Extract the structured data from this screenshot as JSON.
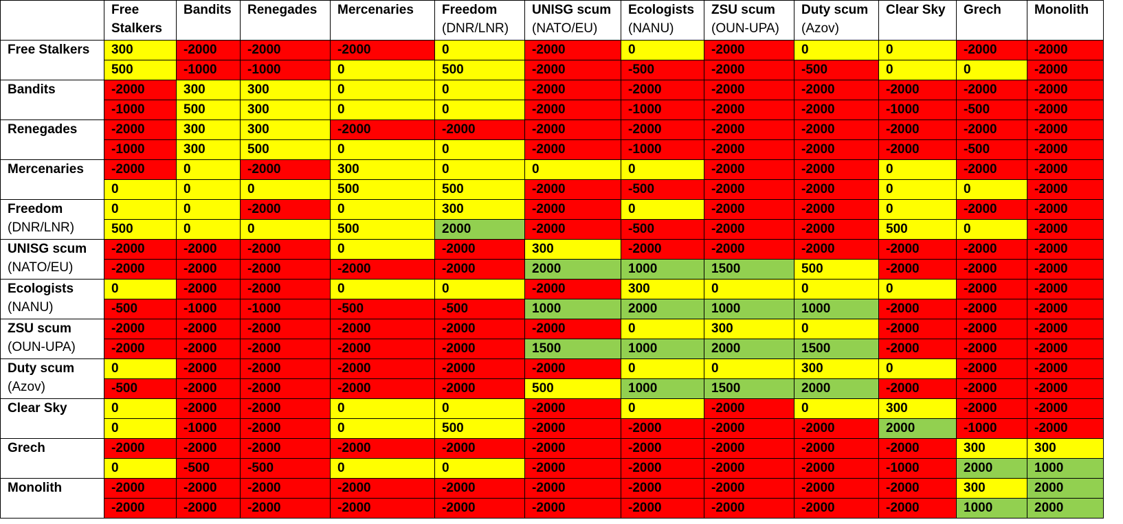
{
  "colors": {
    "hostile": "#ff0000",
    "neutral": "#ffff00",
    "friendly": "#92d050"
  },
  "factions": [
    {
      "name": "Free Stalkers",
      "head": [
        "Free",
        "Stalkers"
      ],
      "row_head": [
        "Free Stalkers",
        ""
      ]
    },
    {
      "name": "Bandits",
      "head": [
        "Bandits",
        ""
      ],
      "row_head": [
        "Bandits",
        ""
      ]
    },
    {
      "name": "Renegades",
      "head": [
        "Renegades",
        ""
      ],
      "row_head": [
        "Renegades",
        ""
      ]
    },
    {
      "name": "Mercenaries",
      "head": [
        "Mercenaries",
        ""
      ],
      "row_head": [
        "Mercenaries",
        ""
      ]
    },
    {
      "name": "Freedom (DNR/LNR)",
      "head": [
        "Freedom",
        "(DNR/LNR)"
      ],
      "row_head": [
        "Freedom",
        "(DNR/LNR)"
      ]
    },
    {
      "name": "UNISG scum (NATO/EU)",
      "head": [
        "UNISG scum",
        "(NATO/EU)"
      ],
      "row_head": [
        "UNISG scum",
        "(NATO/EU)"
      ]
    },
    {
      "name": "Ecologists (NANU)",
      "head": [
        "Ecologists",
        "(NANU)"
      ],
      "row_head": [
        "Ecologists",
        "(NANU)"
      ]
    },
    {
      "name": "ZSU scum (OUN-UPA)",
      "head": [
        "ZSU scum",
        "(OUN-UPA)"
      ],
      "row_head": [
        "ZSU scum",
        "(OUN-UPA)"
      ]
    },
    {
      "name": "Duty scum (Azov)",
      "head": [
        "Duty scum",
        "(Azov)"
      ],
      "row_head": [
        "Duty scum",
        "(Azov)"
      ]
    },
    {
      "name": "Clear Sky",
      "head": [
        "Clear Sky",
        ""
      ],
      "row_head": [
        "Clear Sky",
        ""
      ]
    },
    {
      "name": "Grech",
      "head": [
        "Grech",
        ""
      ],
      "row_head": [
        "Grech",
        ""
      ]
    },
    {
      "name": "Monolith",
      "head": [
        "Monolith",
        ""
      ],
      "row_head": [
        "Monolith",
        ""
      ]
    }
  ],
  "rows": [
    [
      [
        300,
        -2000,
        -2000,
        -2000,
        0,
        -2000,
        0,
        -2000,
        0,
        0,
        -2000,
        -2000
      ],
      [
        500,
        -1000,
        -1000,
        0,
        500,
        -2000,
        -500,
        -2000,
        -500,
        0,
        0,
        -2000
      ]
    ],
    [
      [
        -2000,
        300,
        300,
        0,
        0,
        -2000,
        -2000,
        -2000,
        -2000,
        -2000,
        -2000,
        -2000
      ],
      [
        -1000,
        500,
        300,
        0,
        0,
        -2000,
        -1000,
        -2000,
        -2000,
        -1000,
        -500,
        -2000
      ]
    ],
    [
      [
        -2000,
        300,
        300,
        -2000,
        -2000,
        -2000,
        -2000,
        -2000,
        -2000,
        -2000,
        -2000,
        -2000
      ],
      [
        -1000,
        300,
        500,
        0,
        0,
        -2000,
        -1000,
        -2000,
        -2000,
        -2000,
        -500,
        -2000
      ]
    ],
    [
      [
        -2000,
        0,
        -2000,
        300,
        0,
        0,
        0,
        -2000,
        -2000,
        0,
        -2000,
        -2000
      ],
      [
        0,
        0,
        0,
        500,
        500,
        -2000,
        -500,
        -2000,
        -2000,
        0,
        0,
        -2000
      ]
    ],
    [
      [
        0,
        0,
        -2000,
        0,
        300,
        -2000,
        0,
        -2000,
        -2000,
        0,
        -2000,
        -2000
      ],
      [
        500,
        0,
        0,
        500,
        2000,
        -2000,
        -500,
        -2000,
        -2000,
        500,
        0,
        -2000
      ]
    ],
    [
      [
        -2000,
        -2000,
        -2000,
        0,
        -2000,
        300,
        -2000,
        -2000,
        -2000,
        -2000,
        -2000,
        -2000
      ],
      [
        -2000,
        -2000,
        -2000,
        -2000,
        -2000,
        2000,
        1000,
        1500,
        500,
        -2000,
        -2000,
        -2000
      ]
    ],
    [
      [
        0,
        -2000,
        -2000,
        0,
        0,
        -2000,
        300,
        0,
        0,
        0,
        -2000,
        -2000
      ],
      [
        -500,
        -1000,
        -1000,
        -500,
        -500,
        1000,
        2000,
        1000,
        1000,
        -2000,
        -2000,
        -2000
      ]
    ],
    [
      [
        -2000,
        -2000,
        -2000,
        -2000,
        -2000,
        -2000,
        0,
        300,
        0,
        -2000,
        -2000,
        -2000
      ],
      [
        -2000,
        -2000,
        -2000,
        -2000,
        -2000,
        1500,
        1000,
        2000,
        1500,
        -2000,
        -2000,
        -2000
      ]
    ],
    [
      [
        0,
        -2000,
        -2000,
        -2000,
        -2000,
        -2000,
        0,
        0,
        300,
        0,
        -2000,
        -2000
      ],
      [
        -500,
        -2000,
        -2000,
        -2000,
        -2000,
        500,
        1000,
        1500,
        2000,
        -2000,
        -2000,
        -2000
      ]
    ],
    [
      [
        0,
        -2000,
        -2000,
        0,
        0,
        -2000,
        0,
        -2000,
        0,
        300,
        -2000,
        -2000
      ],
      [
        0,
        -1000,
        -2000,
        0,
        500,
        -2000,
        -2000,
        -2000,
        -2000,
        2000,
        -1000,
        -2000
      ]
    ],
    [
      [
        -2000,
        -2000,
        -2000,
        -2000,
        -2000,
        -2000,
        -2000,
        -2000,
        -2000,
        -2000,
        300,
        300
      ],
      [
        0,
        -500,
        -500,
        0,
        0,
        -2000,
        -2000,
        -2000,
        -2000,
        -1000,
        2000,
        1000
      ]
    ],
    [
      [
        -2000,
        -2000,
        -2000,
        -2000,
        -2000,
        -2000,
        -2000,
        -2000,
        -2000,
        -2000,
        300,
        2000
      ],
      [
        -2000,
        -2000,
        -2000,
        -2000,
        -2000,
        -2000,
        -2000,
        -2000,
        -2000,
        -2000,
        1000,
        2000
      ]
    ]
  ]
}
